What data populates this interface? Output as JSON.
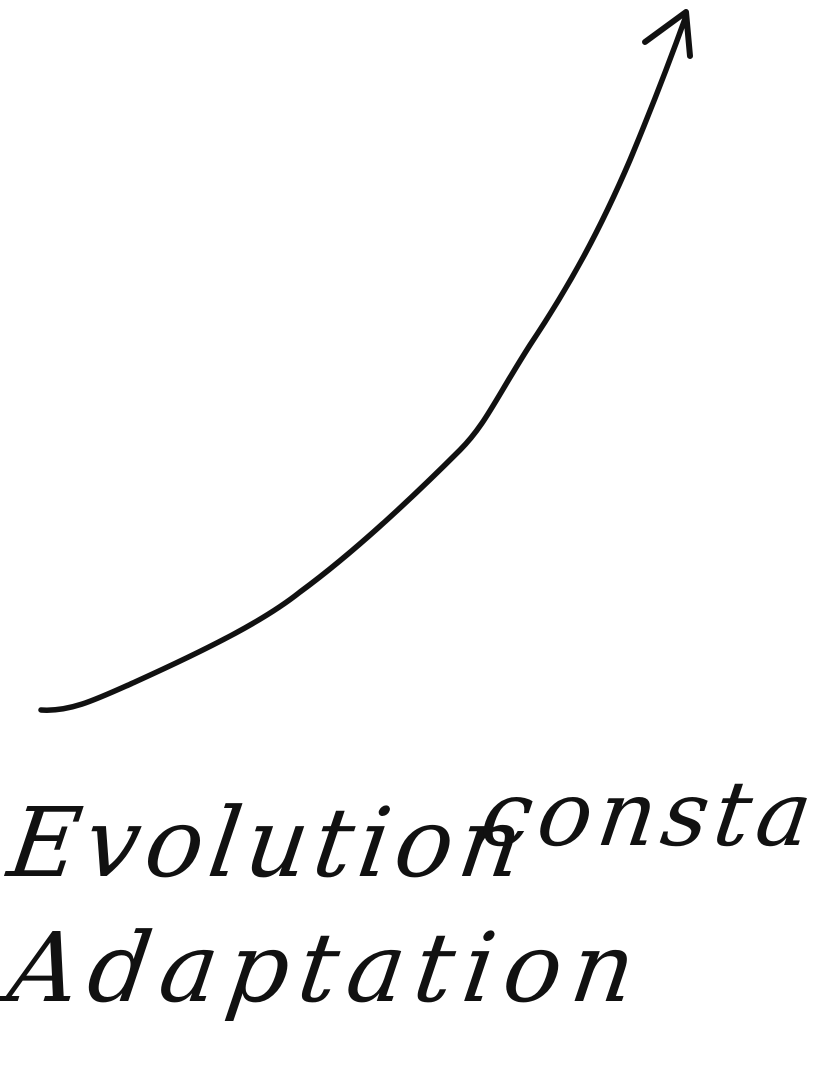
{
  "labels": {
    "word1": "Evolution",
    "word2": "constante",
    "word3": "Adaptation"
  },
  "colors": {
    "ink": "#111111",
    "background": "#ffffff"
  },
  "icons": {
    "curve": "rising-curve-arrow"
  }
}
